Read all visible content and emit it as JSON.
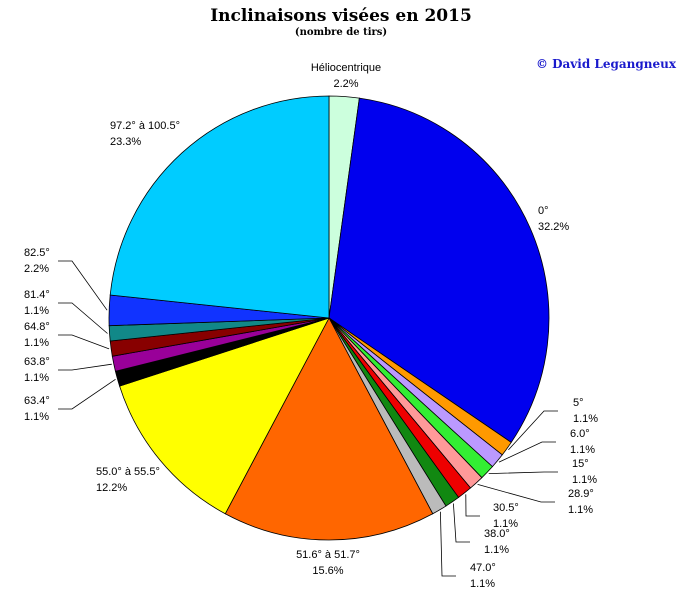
{
  "chart_data": {
    "type": "pie",
    "title": "Inclinaisons visées en 2015",
    "subtitle": "(nombre de tirs)",
    "credit": "© David Legangneux",
    "slices": [
      {
        "label": "Héliocentrique",
        "percent_label": "2.2%",
        "value": 2.2,
        "color": "#ccffdd"
      },
      {
        "label": "0°",
        "percent_label": "32.2%",
        "value": 32.2,
        "color": "#0000ee"
      },
      {
        "label": "5°",
        "percent_label": "1.1%",
        "value": 1.1,
        "color": "#ff9900"
      },
      {
        "label": "6.0°",
        "percent_label": "1.1%",
        "value": 1.1,
        "color": "#bb99ff"
      },
      {
        "label": "15°",
        "percent_label": "1.1%",
        "value": 1.1,
        "color": "#33ee33"
      },
      {
        "label": "28.9°",
        "percent_label": "1.1%",
        "value": 1.1,
        "color": "#ff9999"
      },
      {
        "label": "30.5°",
        "percent_label": "1.1%",
        "value": 1.1,
        "color": "#ee0000"
      },
      {
        "label": "38.0°",
        "percent_label": "1.1%",
        "value": 1.1,
        "color": "#118811"
      },
      {
        "label": "47.0°",
        "percent_label": "1.1%",
        "value": 1.1,
        "color": "#bbbbbb"
      },
      {
        "label": "51.6° à 51.7°",
        "percent_label": "15.6%",
        "value": 15.6,
        "color": "#ff6600"
      },
      {
        "label": "55.0° à 55.5°",
        "percent_label": "12.2%",
        "value": 12.2,
        "color": "#ffff00"
      },
      {
        "label": "63.4°",
        "percent_label": "1.1%",
        "value": 1.1,
        "color": "#000000"
      },
      {
        "label": "63.8°",
        "percent_label": "1.1%",
        "value": 1.1,
        "color": "#990099"
      },
      {
        "label": "64.8°",
        "percent_label": "1.1%",
        "value": 1.1,
        "color": "#880000"
      },
      {
        "label": "81.4°",
        "percent_label": "1.1%",
        "value": 1.1,
        "color": "#118888"
      },
      {
        "label": "82.5°",
        "percent_label": "2.2%",
        "value": 2.2,
        "color": "#1133ff"
      },
      {
        "label": "97.2° à 100.5°",
        "percent_label": "23.3%",
        "value": 23.3,
        "color": "#00ccff"
      }
    ]
  }
}
